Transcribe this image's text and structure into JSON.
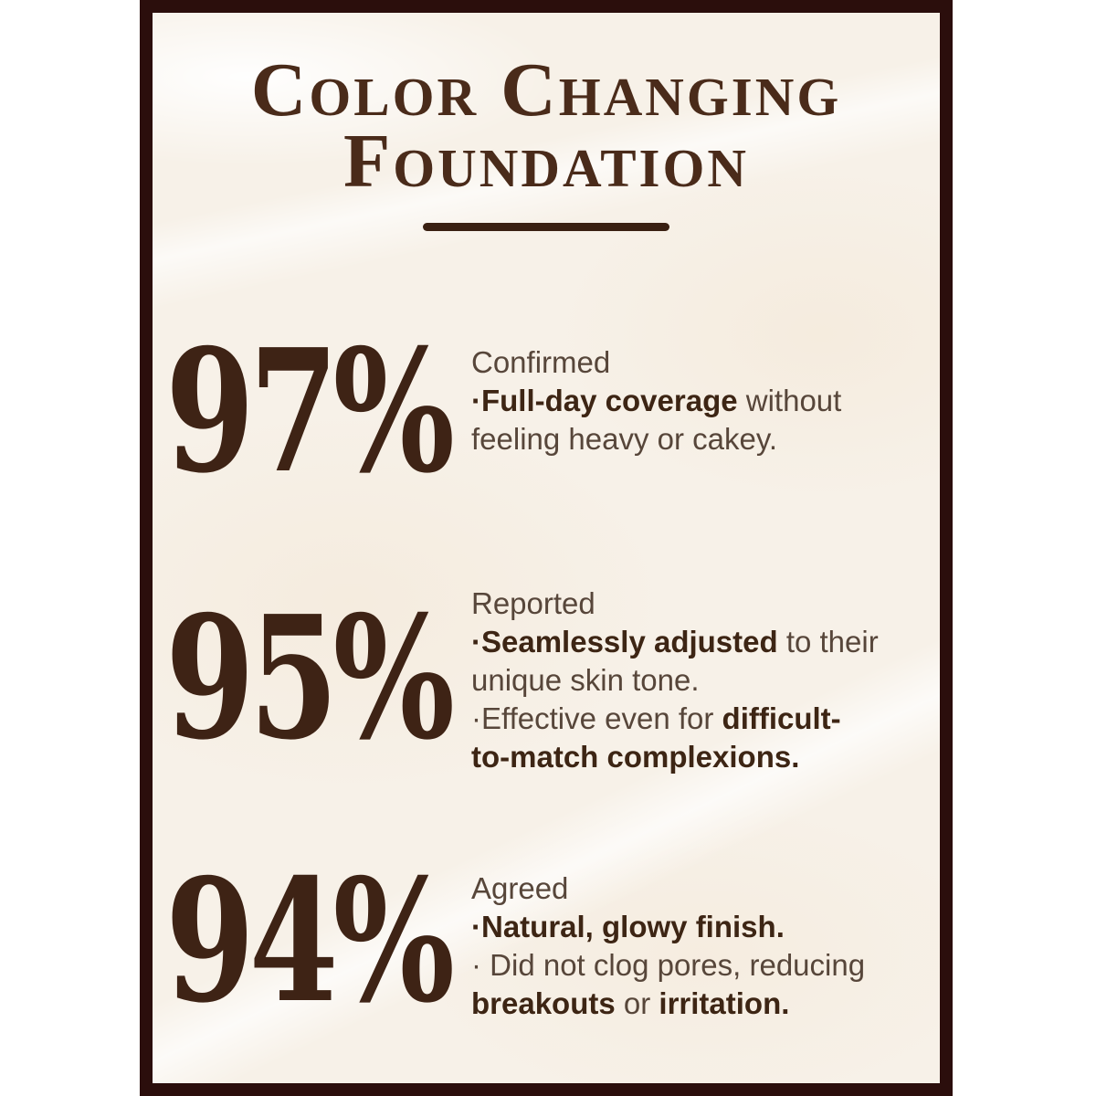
{
  "colors": {
    "frame_border": "#2b0e0c",
    "card_background": "#f7f1e8",
    "title_text": "#4a2b1a",
    "percentage_text": "#3e2315",
    "divider": "#3a2012",
    "body_text_regular": "#57463a",
    "body_text_bold": "#3d2514"
  },
  "title": {
    "line1": "Color Changing",
    "line2": "Foundation"
  },
  "stats": [
    {
      "percentage": "97%",
      "heading": "Confirmed",
      "lines": [
        [
          {
            "text": "·Full-day coverage",
            "bold": true
          },
          {
            "text": " without",
            "bold": false
          }
        ],
        [
          {
            "text": "feeling heavy or cakey.",
            "bold": false
          }
        ]
      ]
    },
    {
      "percentage": "95%",
      "heading": "Reported",
      "lines": [
        [
          {
            "text": "·Seamlessly adjusted",
            "bold": true
          },
          {
            "text": " to their",
            "bold": false
          }
        ],
        [
          {
            "text": "unique skin tone.",
            "bold": false
          }
        ],
        [
          {
            "text": "·Effective even for ",
            "bold": false
          },
          {
            "text": "difficult-",
            "bold": true
          }
        ],
        [
          {
            "text": "to-match complexions.",
            "bold": true
          }
        ]
      ]
    },
    {
      "percentage": "94%",
      "heading": "Agreed",
      "lines": [
        [
          {
            "text": "·Natural, glowy finish.",
            "bold": true
          }
        ],
        [
          {
            "text": "· Did not clog pores, reducing",
            "bold": false
          }
        ],
        [
          {
            "text": "breakouts",
            "bold": true
          },
          {
            "text": " or ",
            "bold": false
          },
          {
            "text": "irritation.",
            "bold": true
          }
        ]
      ]
    }
  ]
}
